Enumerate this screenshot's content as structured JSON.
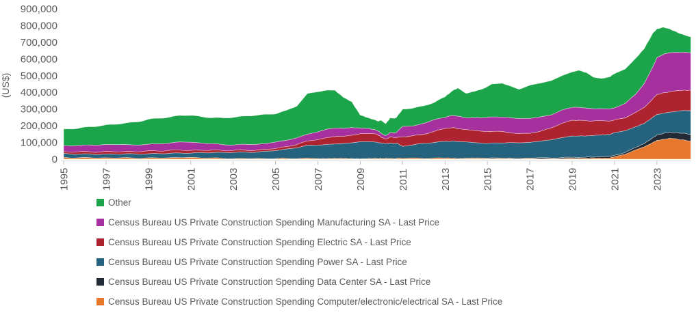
{
  "y_axis": {
    "title": "(US$)",
    "ticks": [
      {
        "value": 0,
        "label": "0"
      },
      {
        "value": 100000,
        "label": "100,000"
      },
      {
        "value": 200000,
        "label": "200,000"
      },
      {
        "value": 300000,
        "label": "300,000"
      },
      {
        "value": 400000,
        "label": "400,000"
      },
      {
        "value": 500000,
        "label": "500,000"
      },
      {
        "value": 600000,
        "label": "600,000"
      },
      {
        "value": 700000,
        "label": "700,000"
      },
      {
        "value": 800000,
        "label": "800,000"
      },
      {
        "value": 900000,
        "label": "900,000"
      }
    ]
  },
  "x_axis": {
    "ticks": [
      {
        "value": 1995,
        "label": "1995"
      },
      {
        "value": 1997,
        "label": "1997"
      },
      {
        "value": 1999,
        "label": "1999"
      },
      {
        "value": 2001,
        "label": "2001"
      },
      {
        "value": 2003,
        "label": "2003"
      },
      {
        "value": 2005,
        "label": "2005"
      },
      {
        "value": 2007,
        "label": "2007"
      },
      {
        "value": 2009,
        "label": "2009"
      },
      {
        "value": 2011,
        "label": "2011"
      },
      {
        "value": 2013,
        "label": "2013"
      },
      {
        "value": 2015,
        "label": "2015"
      },
      {
        "value": 2017,
        "label": "2017"
      },
      {
        "value": 2019,
        "label": "2019"
      },
      {
        "value": 2021,
        "label": "2021"
      },
      {
        "value": 2023,
        "label": "2023"
      }
    ]
  },
  "legend": [
    {
      "label": "Other",
      "color": "#1CA44A"
    },
    {
      "label": "Census Bureau US Private Construction Spending Manufacturing SA - Last Price",
      "color": "#A6309E"
    },
    {
      "label": "Census Bureau US Private Construction Spending Electric SA - Last Price",
      "color": "#AD2330"
    },
    {
      "label": "Census Bureau US Private Construction Spending Power SA - Last Price",
      "color": "#25627D"
    },
    {
      "label": "Census Bureau US Private Construction Spending Data Center SA - Last Price",
      "color": "#222A36"
    },
    {
      "label": "Census Bureau US Private Construction Spending Computer/electronic/electrical SA - Last Price",
      "color": "#E8772E"
    }
  ],
  "chart_data": {
    "type": "area",
    "stacked": true,
    "title": "",
    "xlabel": "",
    "ylabel": "(US$)",
    "ylim": [
      0,
      900000
    ],
    "xlim": [
      1995,
      2024.6
    ],
    "grid": false,
    "legend_position": "bottom",
    "values_unit": "US$ millions, seasonally adjusted annual rate",
    "x": [
      1995,
      1995.5,
      1996,
      1996.5,
      1997,
      1997.5,
      1998,
      1998.5,
      1999,
      1999.5,
      2000,
      2000.5,
      2001,
      2001.5,
      2002,
      2002.5,
      2003,
      2003.5,
      2004,
      2004.5,
      2005,
      2005.5,
      2006,
      2006.5,
      2007,
      2007.4,
      2007.8,
      2008.2,
      2008.6,
      2009,
      2009.4,
      2009.8,
      2010,
      2010.2,
      2010.4,
      2010.7,
      2011,
      2011.5,
      2012,
      2012.5,
      2013,
      2013.3,
      2013.6,
      2014,
      2014.4,
      2014.8,
      2015.2,
      2015.7,
      2016,
      2016.5,
      2017,
      2017.5,
      2018,
      2018.5,
      2019,
      2019.3,
      2019.7,
      2020,
      2020.4,
      2020.8,
      2021,
      2021.5,
      2022,
      2022.4,
      2022.8,
      2023,
      2023.3,
      2023.6,
      2024,
      2024.3,
      2024.6
    ],
    "series": [
      {
        "name": "Census Bureau US Private Construction Spending Computer/electronic/electrical SA - Last Price",
        "color": "#E8772E",
        "values": [
          10000,
          9000,
          9000,
          8000,
          8000,
          8000,
          8000,
          7000,
          7000,
          8000,
          9000,
          10000,
          10000,
          9000,
          7000,
          5000,
          4000,
          4000,
          4000,
          4000,
          4000,
          4000,
          5000,
          5000,
          5000,
          5000,
          4000,
          4000,
          4000,
          4000,
          4000,
          4000,
          5000,
          5000,
          5000,
          5000,
          6000,
          6000,
          6000,
          6000,
          6000,
          6000,
          5000,
          5000,
          4000,
          4000,
          4000,
          4000,
          4000,
          3000,
          3000,
          3000,
          3000,
          4000,
          4000,
          4000,
          5000,
          5000,
          6000,
          8000,
          15000,
          30000,
          55000,
          75000,
          100000,
          112000,
          120000,
          124000,
          120000,
          114000,
          107000
        ]
      },
      {
        "name": "Census Bureau US Private Construction Spending Data Center SA - Last Price",
        "color": "#222A36",
        "values": [
          0,
          0,
          0,
          0,
          0,
          0,
          0,
          0,
          0,
          0,
          0,
          0,
          0,
          0,
          0,
          0,
          0,
          0,
          0,
          0,
          0,
          0,
          0,
          0,
          0,
          0,
          0,
          0,
          0,
          0,
          0,
          0,
          0,
          0,
          0,
          0,
          0,
          0,
          0,
          0,
          0,
          0,
          0,
          2000,
          2000,
          2000,
          3000,
          3000,
          3000,
          4000,
          4000,
          5000,
          5000,
          6000,
          6000,
          6000,
          7000,
          7000,
          8000,
          8000,
          9000,
          11000,
          14000,
          18000,
          28000,
          33000,
          35000,
          36000,
          38000,
          40000,
          41000
        ]
      },
      {
        "name": "Census Bureau US Private Construction Spending Power SA - Last Price",
        "color": "#25627D",
        "values": [
          23000,
          22000,
          22000,
          22000,
          22000,
          23000,
          24000,
          24000,
          25000,
          26000,
          26000,
          27000,
          27000,
          30000,
          33000,
          35000,
          37000,
          38000,
          38000,
          42000,
          49000,
          55000,
          65000,
          77000,
          80000,
          83000,
          85000,
          90000,
          96000,
          102000,
          100000,
          96000,
          92000,
          89000,
          90000,
          91000,
          72000,
          80000,
          89000,
          95000,
          100000,
          102000,
          102000,
          95000,
          92000,
          90000,
          90000,
          90000,
          91000,
          92000,
          94000,
          100000,
          108000,
          120000,
          128000,
          129000,
          127000,
          130000,
          132000,
          133000,
          135000,
          130000,
          125000,
          122000,
          122000,
          124000,
          120000,
          121000,
          130000,
          137000,
          143000
        ]
      },
      {
        "name": "Census Bureau US Private Construction Spending Electric SA - Last Price",
        "color": "#AD2330",
        "values": [
          12000,
          13000,
          13000,
          14000,
          15000,
          14000,
          14000,
          15000,
          16000,
          17000,
          17000,
          18000,
          16000,
          15000,
          14000,
          13000,
          12000,
          12000,
          12000,
          12000,
          12000,
          15000,
          20000,
          24000,
          35000,
          42000,
          45000,
          41000,
          45000,
          49000,
          50000,
          48000,
          35000,
          26000,
          38000,
          34000,
          57000,
          55000,
          55000,
          65000,
          78000,
          80000,
          78000,
          75000,
          72000,
          70000,
          70000,
          68000,
          62000,
          55000,
          53000,
          60000,
          70000,
          85000,
          94000,
          94000,
          90000,
          86000,
          84000,
          80000,
          76000,
          78000,
          85000,
          95000,
          112000,
          118000,
          122000,
          122000,
          122000,
          122000,
          122000
        ]
      },
      {
        "name": "Census Bureau US Private Construction Spending Manufacturing SA - Last Price",
        "color": "#A6309E",
        "values": [
          37000,
          38000,
          39000,
          41000,
          43000,
          42000,
          41000,
          40000,
          40000,
          42000,
          45000,
          48000,
          49000,
          44000,
          38000,
          35000,
          33000,
          34000,
          35000,
          36000,
          37000,
          38000,
          40000,
          41000,
          45000,
          50000,
          52000,
          49000,
          45000,
          33000,
          30000,
          24000,
          22000,
          20000,
          26000,
          30000,
          61000,
          58000,
          66000,
          70000,
          66000,
          73000,
          75000,
          70000,
          78000,
          82000,
          86000,
          88000,
          90000,
          90000,
          90000,
          85000,
          80000,
          78000,
          78000,
          78000,
          76000,
          74000,
          72000,
          72000,
          73000,
          85000,
          110000,
          142000,
          190000,
          220000,
          232000,
          235000,
          230000,
          227000,
          224000
        ]
      },
      {
        "name": "Other",
        "color": "#1CA44A",
        "values": [
          96000,
          102000,
          107000,
          111000,
          117000,
          123000,
          129000,
          139000,
          150000,
          152000,
          155000,
          159000,
          160000,
          157000,
          156000,
          158000,
          166000,
          168000,
          173000,
          174000,
          170000,
          178000,
          190000,
          243000,
          240000,
          233000,
          224000,
          186000,
          155000,
          78000,
          61000,
          56000,
          78000,
          72000,
          86000,
          88000,
          104000,
          106000,
          104000,
          104000,
          122000,
          144000,
          168000,
          145000,
          157000,
          174000,
          197000,
          202000,
          190000,
          176000,
          198000,
          202000,
          204000,
          207000,
          210000,
          221000,
          211000,
          188000,
          181000,
          194000,
          205000,
          206000,
          214000,
          211000,
          201000,
          173000,
          162000,
          140000,
          118000,
          102000,
          95000
        ]
      }
    ]
  }
}
